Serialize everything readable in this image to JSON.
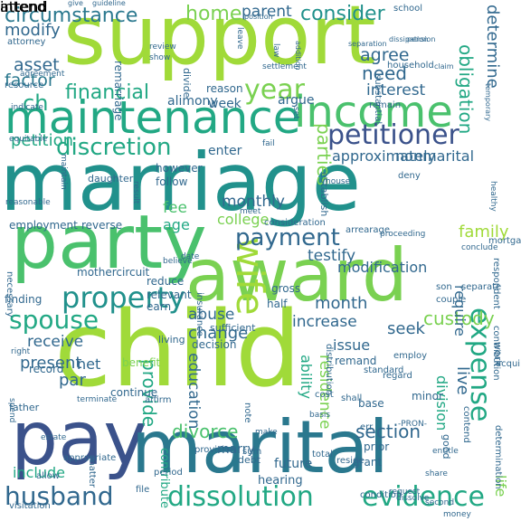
{
  "words": [
    {
      "text": "marriage",
      "color": "#21918c"
    },
    {
      "text": "child",
      "color": "#a0da39"
    },
    {
      "text": "support",
      "color": "#a0da39"
    },
    {
      "text": "party",
      "color": "#4ac16d"
    },
    {
      "text": "award",
      "color": "#7ad151"
    },
    {
      "text": "pay",
      "color": "#3b528b"
    },
    {
      "text": "marital",
      "color": "#2a788e"
    },
    {
      "text": "maintenance",
      "color": "#22a884"
    },
    {
      "text": "income",
      "color": "#4ac16d"
    },
    {
      "text": "property",
      "color": "#21918c"
    },
    {
      "text": "husband",
      "color": "#31688e"
    },
    {
      "text": "dissolution",
      "color": "#22a884"
    },
    {
      "text": "evidence",
      "color": "#22a884"
    },
    {
      "text": "petitioner",
      "color": "#3b528b"
    },
    {
      "text": "spouse",
      "color": "#22a884"
    },
    {
      "text": "wife",
      "color": "#a0da39"
    },
    {
      "text": "payment",
      "color": "#31688e"
    },
    {
      "text": "discretion",
      "color": "#22a884"
    },
    {
      "text": "year",
      "color": "#7ad151"
    },
    {
      "text": "expense",
      "color": "#22a884"
    },
    {
      "text": "divorce",
      "color": "#4ac16d"
    },
    {
      "text": "section",
      "color": "#31688e"
    },
    {
      "text": "custody",
      "color": "#7ad151"
    },
    {
      "text": "financial",
      "color": "#22a884"
    },
    {
      "text": "circumstance",
      "color": "#2a788e"
    },
    {
      "text": "home",
      "color": "#7ad151"
    },
    {
      "text": "consider",
      "color": "#21918c"
    },
    {
      "text": "parent",
      "color": "#31688e"
    },
    {
      "text": "modify",
      "color": "#31688e"
    },
    {
      "text": "asset",
      "color": "#31688e"
    },
    {
      "text": "factor",
      "color": "#2a788e"
    },
    {
      "text": "ch",
      "color": "#22a884"
    },
    {
      "text": "petition",
      "color": "#22a884"
    },
    {
      "text": "agree",
      "color": "#31688e"
    },
    {
      "text": "need",
      "color": "#31688e"
    },
    {
      "text": "interest",
      "color": "#31688e"
    },
    {
      "text": "obligation",
      "color": "#22a884"
    },
    {
      "text": "determine",
      "color": "#31688e"
    },
    {
      "text": "parties",
      "color": "#7ad151"
    },
    {
      "text": "approximately",
      "color": "#31688e"
    },
    {
      "text": "nonmarital",
      "color": "#31688e"
    },
    {
      "text": "monthly",
      "color": "#31688e"
    },
    {
      "text": "college",
      "color": "#7ad151"
    },
    {
      "text": "fee",
      "color": "#4ac16d"
    },
    {
      "text": "age",
      "color": "#22a884"
    },
    {
      "text": "testify",
      "color": "#31688e"
    },
    {
      "text": "family",
      "color": "#a0da39"
    },
    {
      "text": "modification",
      "color": "#31688e"
    },
    {
      "text": "abuse",
      "color": "#31688e"
    },
    {
      "text": "change",
      "color": "#31688e"
    },
    {
      "text": "month",
      "color": "#31688e"
    },
    {
      "text": "increase",
      "color": "#31688e"
    },
    {
      "text": "receive",
      "color": "#31688e"
    },
    {
      "text": "present",
      "color": "#31688e"
    },
    {
      "text": "provide",
      "color": "#22a884"
    },
    {
      "text": "residence",
      "color": "#7ad151"
    },
    {
      "text": "ability",
      "color": "#22a884"
    },
    {
      "text": "live",
      "color": "#31688e"
    },
    {
      "text": "seek",
      "color": "#31688e"
    },
    {
      "text": "issue",
      "color": "#31688e"
    },
    {
      "text": "require",
      "color": "#31688e"
    },
    {
      "text": "division",
      "color": "#22a884"
    },
    {
      "text": "education",
      "color": "#31688e"
    },
    {
      "text": "par",
      "color": "#31688e"
    },
    {
      "text": "net",
      "color": "#31688e"
    },
    {
      "text": "include",
      "color": "#22a884"
    },
    {
      "text": "future",
      "color": "#31688e"
    },
    {
      "text": "hearing",
      "color": "#31688e"
    },
    {
      "text": "marry",
      "color": "#31688e"
    },
    {
      "text": "contribute",
      "color": "#22a884"
    },
    {
      "text": "life",
      "color": "#7ad151"
    },
    {
      "text": "alimony",
      "color": "#31688e"
    },
    {
      "text": "week",
      "color": "#31688e"
    },
    {
      "text": "argue",
      "color": "#31688e"
    },
    {
      "text": "enter",
      "color": "#31688e"
    },
    {
      "text": "however",
      "color": "#31688e"
    },
    {
      "text": "follow",
      "color": "#31688e"
    },
    {
      "text": "employment",
      "color": "#31688e"
    },
    {
      "text": "reverse",
      "color": "#31688e"
    },
    {
      "text": "mothercircuit",
      "color": "#31688e"
    },
    {
      "text": "finding",
      "color": "#31688e"
    },
    {
      "text": "record",
      "color": "#31688e"
    },
    {
      "text": "gross",
      "color": "#31688e"
    },
    {
      "text": "half",
      "color": "#31688e"
    },
    {
      "text": "living",
      "color": "#31688e"
    },
    {
      "text": "reduce",
      "color": "#31688e"
    },
    {
      "text": "relevant",
      "color": "#31688e"
    },
    {
      "text": "earn",
      "color": "#31688e"
    },
    {
      "text": "benefit",
      "color": "#7ad151"
    },
    {
      "text": "continue",
      "color": "#31688e"
    },
    {
      "text": "decision",
      "color": "#31688e"
    },
    {
      "text": "remand",
      "color": "#31688e"
    },
    {
      "text": "minor",
      "color": "#31688e"
    },
    {
      "text": "base",
      "color": "#31688e"
    },
    {
      "text": "prior",
      "color": "#31688e"
    },
    {
      "text": "grant",
      "color": "#31688e"
    },
    {
      "text": "father",
      "color": "#31688e"
    },
    {
      "text": "debt",
      "color": "#31688e"
    },
    {
      "text": "work",
      "color": "#31688e"
    },
    {
      "text": "good",
      "color": "#31688e"
    },
    {
      "text": "sufficient",
      "color": "#31688e"
    },
    {
      "text": "establish",
      "color": "#31688e"
    },
    {
      "text": "attorney",
      "color": "#31688e"
    },
    {
      "text": "resource",
      "color": "#31688e"
    },
    {
      "text": "remarriage",
      "color": "#31688e"
    },
    {
      "text": "reason",
      "color": "#31688e"
    },
    {
      "text": "divide",
      "color": "#31688e"
    },
    {
      "text": "school",
      "color": "#31688e"
    },
    {
      "text": "substantial",
      "color": "#31688e"
    },
    {
      "text": "household",
      "color": "#31688e"
    },
    {
      "text": "remain",
      "color": "#31688e"
    },
    {
      "text": "daughter",
      "color": "#31688e"
    },
    {
      "text": "deny",
      "color": "#31688e"
    },
    {
      "text": "mortgage",
      "color": "#31688e"
    },
    {
      "text": "separate",
      "color": "#31688e"
    },
    {
      "text": "respondent",
      "color": "#31688e"
    },
    {
      "text": "son",
      "color": "#31688e"
    },
    {
      "text": "couple",
      "color": "#31688e"
    },
    {
      "text": "consideration",
      "color": "#31688e"
    },
    {
      "text": "arrearage",
      "color": "#31688e"
    },
    {
      "text": "contribution",
      "color": "#31688e"
    },
    {
      "text": "determination",
      "color": "#31688e"
    },
    {
      "text": "distribution",
      "color": "#31688e"
    },
    {
      "text": "standard",
      "color": "#31688e"
    },
    {
      "text": "affirm",
      "color": "#31688e"
    },
    {
      "text": "period",
      "color": "#31688e"
    },
    {
      "text": "allow",
      "color": "#31688e"
    },
    {
      "text": "file",
      "color": "#31688e"
    },
    {
      "text": "condition",
      "color": "#31688e"
    },
    {
      "text": "contend",
      "color": "#31688e"
    },
    {
      "text": "provision",
      "color": "#31688e"
    },
    {
      "text": "visitation",
      "color": "#31688e"
    },
    {
      "text": "necessary",
      "color": "#31688e"
    },
    {
      "text": "insurance",
      "color": "#31688e"
    },
    {
      "text": "appropriate",
      "color": "#31688e"
    },
    {
      "text": "matter",
      "color": "#31688e"
    },
    {
      "text": "make",
      "color": "#31688e"
    },
    {
      "text": "total",
      "color": "#31688e"
    },
    {
      "text": "err",
      "color": "#31688e"
    },
    {
      "text": "reside",
      "color": "#31688e"
    },
    {
      "text": "shall",
      "color": "#31688e"
    },
    {
      "text": "regard",
      "color": "#31688e"
    },
    {
      "text": "employ",
      "color": "#31688e"
    },
    {
      "text": "acquire",
      "color": "#31688e"
    },
    {
      "text": "sum",
      "color": "#31688e"
    },
    {
      "text": "cost",
      "color": "#31688e"
    },
    {
      "text": "note",
      "color": "#31688e"
    },
    {
      "text": "right",
      "color": "#31688e"
    },
    {
      "text": "estate",
      "color": "#31688e"
    },
    {
      "text": "spend",
      "color": "#31688e"
    },
    {
      "text": "terminate",
      "color": "#31688e"
    },
    {
      "text": "believe",
      "color": "#31688e"
    },
    {
      "text": "date",
      "color": "#31688e"
    },
    {
      "text": "result",
      "color": "#31688e"
    },
    {
      "text": "reasonable",
      "color": "#31688e"
    },
    {
      "text": "maintain",
      "color": "#31688e"
    },
    {
      "text": "agreement",
      "color": "#31688e"
    },
    {
      "text": "equitable",
      "color": "#31688e"
    },
    {
      "text": "indicate",
      "color": "#31688e"
    },
    {
      "text": "review",
      "color": "#31688e"
    },
    {
      "text": "show",
      "color": "#31688e"
    },
    {
      "text": "law",
      "color": "#31688e"
    },
    {
      "text": "leave",
      "color": "#31688e"
    },
    {
      "text": "position",
      "color": "#31688e"
    },
    {
      "text": "separation",
      "color": "#31688e"
    },
    {
      "text": "dissipation",
      "color": "#31688e"
    },
    {
      "text": "pension",
      "color": "#31688e"
    },
    {
      "text": "claim",
      "color": "#31688e"
    },
    {
      "text": "temporary",
      "color": "#31688e"
    },
    {
      "text": "give",
      "color": "#31688e"
    },
    {
      "text": "guideline",
      "color": "#31688e"
    },
    {
      "text": "addition",
      "color": "#31688e"
    },
    {
      "text": "settlement",
      "color": "#31688e"
    },
    {
      "text": "fail",
      "color": "#31688e"
    },
    {
      "text": "set",
      "color": "#31688e"
    },
    {
      "text": "house",
      "color": "#31688e"
    },
    {
      "text": "proceeding",
      "color": "#31688e"
    },
    {
      "text": "conclude",
      "color": "#31688e"
    },
    {
      "text": "meet",
      "color": "#31688e"
    },
    {
      "text": "-PRON-",
      "color": "#31688e"
    },
    {
      "text": "basis",
      "color": "#31688e"
    },
    {
      "text": "request",
      "color": "#31688e"
    },
    {
      "text": "dissolve",
      "color": "#31688e"
    },
    {
      "text": "money",
      "color": "#31688e"
    },
    {
      "text": "second",
      "color": "#31688e"
    },
    {
      "text": "entitle",
      "color": "#31688e"
    },
    {
      "text": "share",
      "color": "#31688e"
    },
    {
      "text": "healthy",
      "color": "#31688e"
    },
    {
      "text": "intend",
      "color": "#31688e"
    },
    {
      "text": "attend",
      "color": "#31688e"
    }
  ]
}
